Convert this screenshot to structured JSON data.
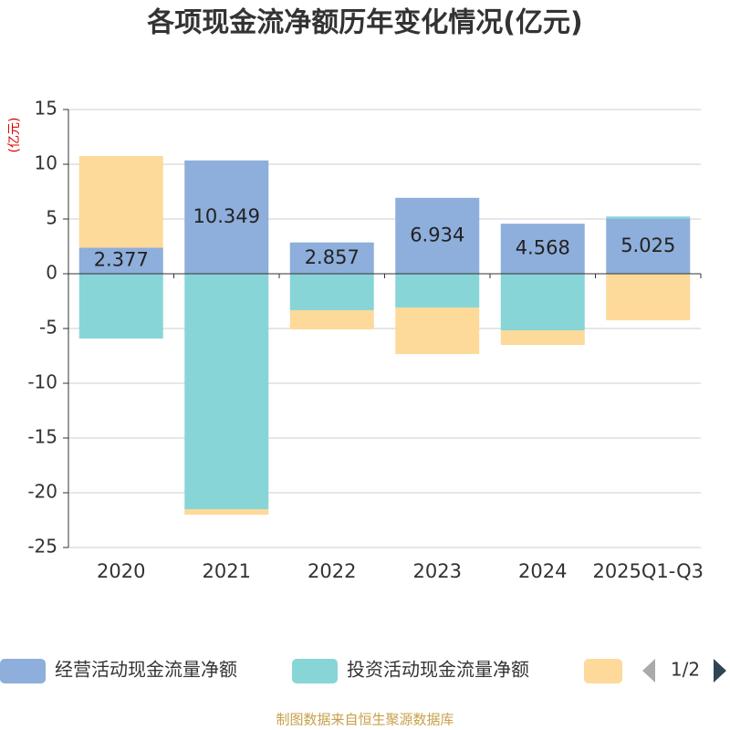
{
  "chart_data": {
    "type": "stacked-bar",
    "title": "各项现金流净额历年变化情况(亿元)",
    "y_label": "(亿元)",
    "categories": [
      "2020",
      "2021",
      "2022",
      "2023",
      "2024",
      "2025Q1-Q3"
    ],
    "series": [
      {
        "name": "经营活动现金流量净额",
        "color": "#8eaedb",
        "values": [
          2.377,
          10.349,
          2.857,
          6.934,
          4.568,
          5.025
        ],
        "show_labels": true
      },
      {
        "name": "投资活动现金流量净额",
        "color": "#88d5d8",
        "values": [
          -5.92,
          -21.5,
          -3.33,
          -3.08,
          -5.17,
          0.2
        ]
      },
      {
        "color": "#fdd99a",
        "values": [
          8.37,
          -0.5,
          -1.75,
          -4.25,
          -1.33,
          -4.25
        ]
      }
    ],
    "ylim": [
      -25,
      15
    ],
    "yticks": [
      -25,
      -20,
      -15,
      -10,
      -5,
      0,
      5,
      10,
      15
    ],
    "grid": true,
    "legend_page": "1/2",
    "footer": "制图数据来自恒生聚源数据库"
  }
}
